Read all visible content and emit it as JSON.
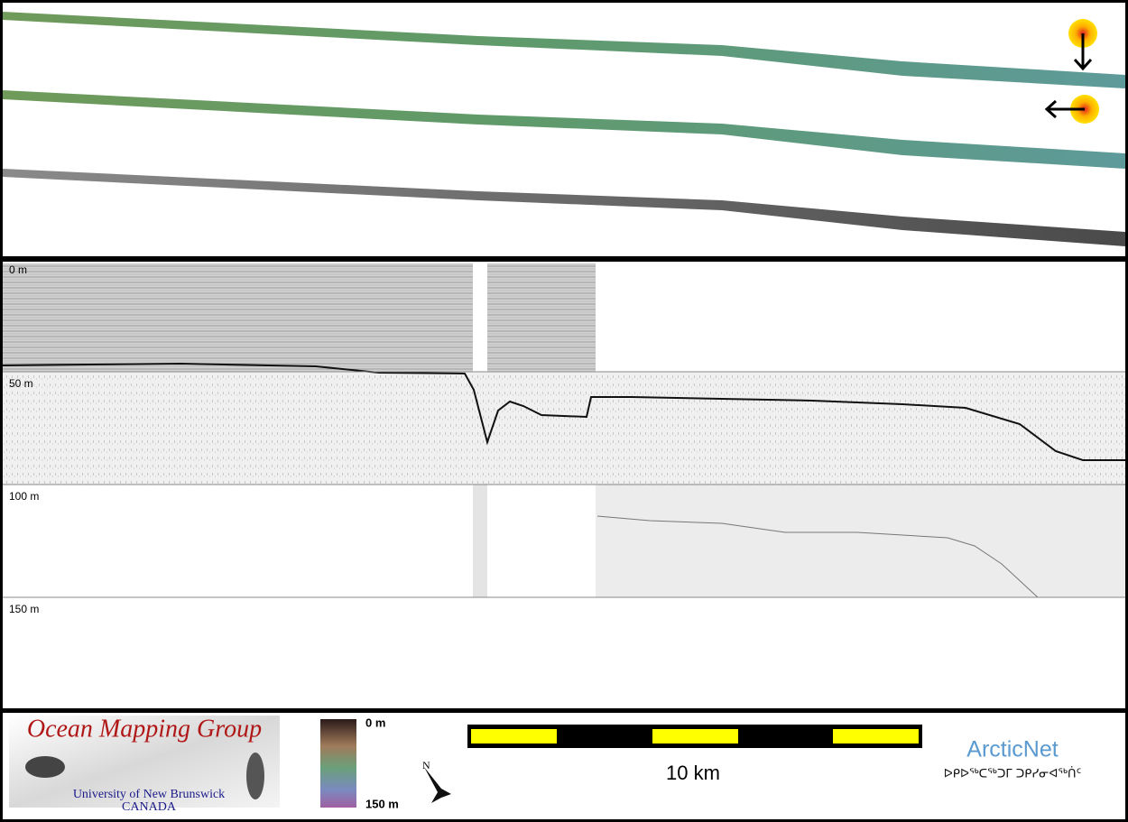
{
  "sonar_panel": {
    "depth_labels": [
      "0 m",
      "50 m",
      "100 m",
      "150 m"
    ]
  },
  "footer": {
    "logo": {
      "title": "Ocean Mapping Group",
      "university": "University of New Brunswick",
      "country": "CANADA"
    },
    "color_scale": {
      "top_label": "0 m",
      "bottom_label": "150 m"
    },
    "compass": "N",
    "scale_bar": "10 km",
    "partner": {
      "name": "ArcticNet",
      "syllabics": "ᐅᑭᐅᖅᑕᖅᑐᒥ ᑐᑭᓯᓂᐊᖅᑏᑦ"
    }
  }
}
